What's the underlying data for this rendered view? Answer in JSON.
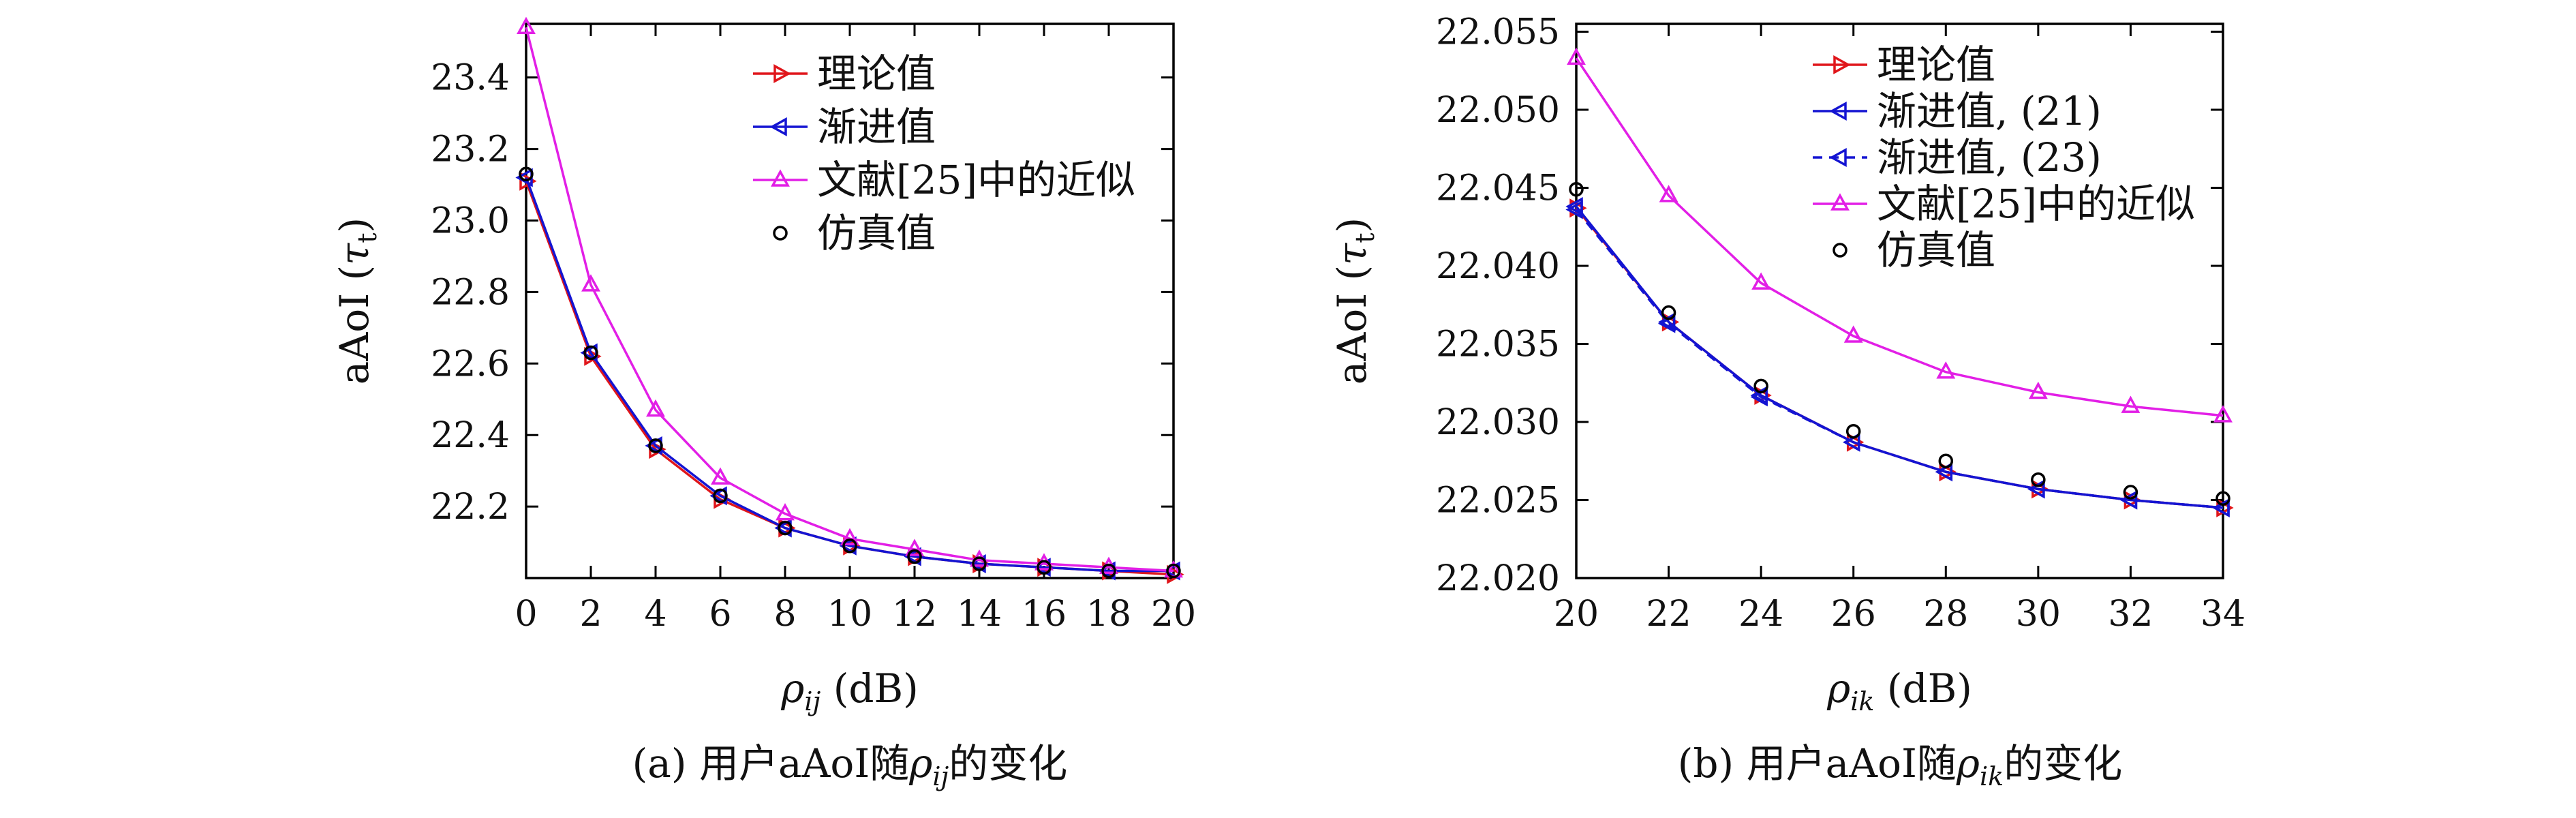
{
  "chart_data": [
    {
      "type": "line",
      "panel": "a",
      "caption": "(a) 用户aAoI随ρij的变化",
      "xlabel": "ρij (dB)",
      "ylabel": "aAoI (τt)",
      "xlim": [
        0,
        20
      ],
      "ylim": [
        22.0,
        23.55
      ],
      "xticks": [
        0,
        2,
        4,
        6,
        8,
        10,
        12,
        14,
        16,
        18,
        20
      ],
      "yticks": [
        22.2,
        22.4,
        22.6,
        22.8,
        23.0,
        23.2,
        23.4
      ],
      "ytick_labels": [
        "22.2",
        "22.4",
        "22.6",
        "22.8",
        "23.0",
        "23.2",
        "23.4"
      ],
      "legend_position": "top-right",
      "x": [
        0,
        2,
        4,
        6,
        8,
        10,
        12,
        14,
        16,
        18,
        20
      ],
      "series": [
        {
          "name": "理论值",
          "color": "#e0161b",
          "marker": "triangle-right",
          "line": "solid",
          "values": [
            23.11,
            22.62,
            22.36,
            22.22,
            22.14,
            22.09,
            22.06,
            22.04,
            22.03,
            22.02,
            22.01
          ]
        },
        {
          "name": "渐进值",
          "color": "#1414d2",
          "marker": "triangle-left",
          "line": "solid",
          "values": [
            23.12,
            22.63,
            22.37,
            22.23,
            22.14,
            22.09,
            22.06,
            22.04,
            22.03,
            22.02,
            22.02
          ]
        },
        {
          "name": "文献[25]中的近似",
          "color": "#e21fe6",
          "marker": "triangle-up",
          "line": "solid",
          "values": [
            23.54,
            22.82,
            22.47,
            22.28,
            22.18,
            22.11,
            22.08,
            22.05,
            22.04,
            22.03,
            22.02
          ]
        },
        {
          "name": "仿真值",
          "color": "#000000",
          "marker": "circle",
          "line": "none",
          "values": [
            23.13,
            22.63,
            22.37,
            22.23,
            22.14,
            22.09,
            22.06,
            22.04,
            22.03,
            22.02,
            22.02
          ]
        }
      ]
    },
    {
      "type": "line",
      "panel": "b",
      "caption": "(b) 用户aAoI随ρik的变化",
      "xlabel": "ρik (dB)",
      "ylabel": "aAoI (τt)",
      "xlim": [
        20,
        34
      ],
      "ylim": [
        22.02,
        22.0555
      ],
      "xticks": [
        20,
        22,
        24,
        26,
        28,
        30,
        32,
        34
      ],
      "yticks": [
        22.02,
        22.025,
        22.03,
        22.035,
        22.04,
        22.045,
        22.05,
        22.055
      ],
      "ytick_labels": [
        "22.020",
        "22.025",
        "22.030",
        "22.035",
        "22.040",
        "22.045",
        "22.050",
        "22.055"
      ],
      "legend_position": "top-right",
      "x": [
        20,
        22,
        24,
        26,
        28,
        30,
        32,
        34
      ],
      "series": [
        {
          "name": "理论值",
          "color": "#e0161b",
          "marker": "triangle-right",
          "line": "solid",
          "values": [
            22.0437,
            22.0364,
            22.0317,
            22.0287,
            22.0268,
            22.0257,
            22.025,
            22.0245
          ]
        },
        {
          "name": "渐进值, (21)",
          "color": "#1414d2",
          "marker": "triangle-left",
          "line": "solid",
          "values": [
            22.0438,
            22.0364,
            22.0317,
            22.0287,
            22.0268,
            22.0257,
            22.025,
            22.0245
          ]
        },
        {
          "name": "渐进值, (23)",
          "color": "#1414d2",
          "marker": "triangle-left",
          "line": "dashed",
          "values": [
            22.0436,
            22.0363,
            22.0316,
            22.0287,
            22.0268,
            22.0257,
            22.025,
            22.0245
          ]
        },
        {
          "name": "文献[25]中的近似",
          "color": "#e21fe6",
          "marker": "triangle-up",
          "line": "solid",
          "values": [
            22.0533,
            22.0445,
            22.0389,
            22.0355,
            22.0332,
            22.0319,
            22.031,
            22.0304
          ]
        },
        {
          "name": "仿真值",
          "color": "#000000",
          "marker": "circle",
          "line": "none",
          "values": [
            22.0449,
            22.037,
            22.0323,
            22.0294,
            22.0275,
            22.0263,
            22.0255,
            22.0251
          ]
        }
      ]
    }
  ]
}
